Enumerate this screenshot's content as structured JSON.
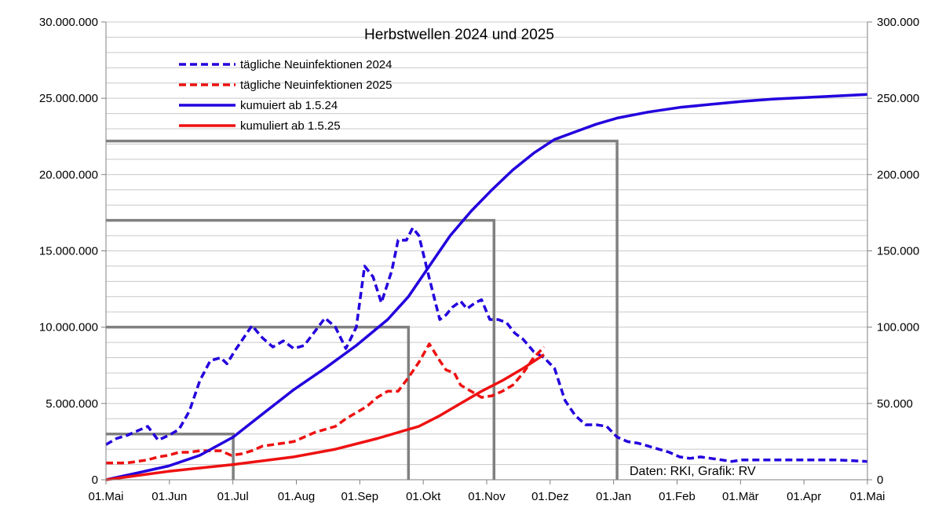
{
  "chart_data": {
    "type": "line",
    "title": "Herbstwellen 2024 und 2025",
    "note": "Daten: RKI, Grafik: RV",
    "x_ticks": [
      "01.Mai",
      "01.Jun",
      "01.Jul",
      "01.Aug",
      "01.Sep",
      "01.Okt",
      "01.Nov",
      "01.Dez",
      "01.Jan",
      "01.Feb",
      "01.Mär",
      "01.Apr",
      "01.Mai"
    ],
    "x_range_days": [
      0,
      365
    ],
    "y_left": {
      "ticks": [
        "0",
        "5.000.000",
        "10.000.000",
        "15.000.000",
        "20.000.000",
        "25.000.000",
        "30.000.000"
      ],
      "ylim": [
        0,
        30000000
      ]
    },
    "y_right": {
      "ticks": [
        "0",
        "50.000",
        "100.000",
        "150.000",
        "200.000",
        "250.000",
        "300.000"
      ],
      "ylim": [
        0,
        300000
      ]
    },
    "grid": true,
    "legend": "top-left",
    "colors": {
      "series2024": "#2200dd",
      "series2025": "#ee1111",
      "reference": "#808080",
      "grid": "#c8c8c8"
    },
    "series": [
      {
        "name": "tägliche Neuinfektionen 2024",
        "axis": "right",
        "style": "dashed",
        "color": "#2200dd",
        "x": [
          0,
          5,
          10,
          15,
          20,
          25,
          30,
          35,
          40,
          45,
          50,
          55,
          58,
          62,
          66,
          70,
          75,
          80,
          85,
          90,
          95,
          100,
          105,
          110,
          115,
          120,
          124,
          128,
          132,
          137,
          140,
          144,
          147,
          150,
          155,
          160,
          163,
          166,
          170,
          173,
          177,
          180,
          184,
          188,
          192,
          196,
          200,
          205,
          210,
          215,
          220,
          225,
          230,
          235,
          240,
          245,
          250,
          255,
          260,
          265,
          270,
          275,
          280,
          285,
          290,
          295,
          300,
          305,
          310,
          315,
          320,
          330,
          340,
          350,
          365
        ],
        "y": [
          23000,
          27000,
          29000,
          32000,
          35000,
          26000,
          29000,
          33000,
          45000,
          65000,
          78000,
          80000,
          76000,
          85000,
          93000,
          101000,
          93000,
          87000,
          91000,
          86000,
          88000,
          97000,
          106000,
          100000,
          86000,
          100000,
          140000,
          133000,
          116000,
          137000,
          157000,
          157000,
          165000,
          160000,
          132000,
          105000,
          108000,
          113000,
          117000,
          112000,
          116000,
          118000,
          105000,
          105000,
          103000,
          96000,
          92000,
          84000,
          80000,
          73000,
          52000,
          42000,
          36000,
          36000,
          35000,
          28000,
          25000,
          24000,
          22000,
          20000,
          18000,
          15000,
          14000,
          15000,
          14000,
          13000,
          12000,
          13000,
          13000,
          13000,
          13000,
          13000,
          13000,
          13000,
          12000
        ]
      },
      {
        "name": "tägliche Neuinfektionen 2025",
        "axis": "right",
        "style": "dashed",
        "color": "#ee1111",
        "x": [
          0,
          10,
          20,
          25,
          30,
          35,
          40,
          45,
          50,
          55,
          60,
          65,
          70,
          75,
          80,
          85,
          90,
          95,
          100,
          105,
          110,
          115,
          120,
          125,
          130,
          135,
          140,
          145,
          150,
          155,
          160,
          163,
          167,
          170,
          175,
          180,
          185,
          190,
          195,
          200,
          205,
          210
        ],
        "y": [
          11000,
          11000,
          13000,
          15000,
          16000,
          18000,
          18000,
          19000,
          19000,
          19000,
          16000,
          17000,
          19000,
          22000,
          23000,
          24000,
          25000,
          28000,
          31000,
          33000,
          35000,
          40000,
          44000,
          48000,
          54000,
          58000,
          58000,
          67000,
          77000,
          89000,
          78000,
          72000,
          70000,
          62000,
          58000,
          54000,
          55000,
          58000,
          62000,
          70000,
          80000,
          87000
        ]
      },
      {
        "name": "kumuiert ab 1.5.24",
        "axis": "left",
        "style": "solid",
        "color": "#2200dd",
        "x": [
          0,
          15,
          30,
          45,
          61,
          75,
          90,
          105,
          120,
          135,
          145,
          155,
          165,
          175,
          185,
          195,
          205,
          215,
          225,
          235,
          245,
          260,
          275,
          290,
          305,
          320,
          335,
          350,
          365
        ],
        "y": [
          0,
          450000,
          900000,
          1600000,
          2800000,
          4300000,
          5900000,
          7300000,
          8800000,
          10500000,
          12000000,
          14000000,
          16000000,
          17600000,
          19000000,
          20300000,
          21400000,
          22300000,
          22800000,
          23300000,
          23700000,
          24100000,
          24400000,
          24600000,
          24800000,
          24950000,
          25050000,
          25150000,
          25250000
        ]
      },
      {
        "name": "kumuliert ab 1.5.25",
        "axis": "left",
        "style": "solid",
        "color": "#ee1111",
        "x": [
          0,
          30,
          61,
          90,
          110,
          130,
          150,
          160,
          170,
          180,
          190,
          200,
          210
        ],
        "y": [
          0,
          550000,
          1000000,
          1500000,
          2000000,
          2700000,
          3500000,
          4200000,
          5000000,
          5800000,
          6500000,
          7300000,
          8200000
        ]
      }
    ],
    "reference_lines": [
      {
        "x": 61,
        "y": 3000000
      },
      {
        "x": 145,
        "y": 10000000
      },
      {
        "x": 186,
        "y": 17000000
      },
      {
        "x": 245,
        "y": 22200000
      }
    ]
  }
}
